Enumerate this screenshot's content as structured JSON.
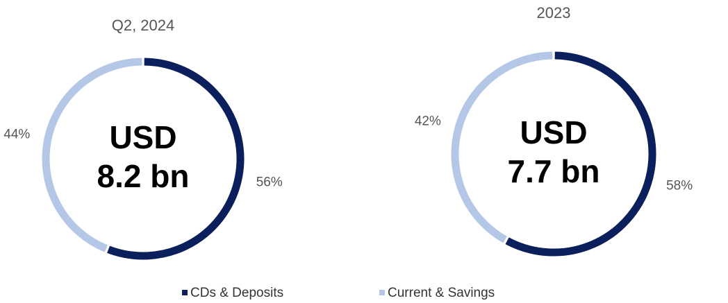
{
  "chart_data": [
    {
      "type": "pie",
      "title": "Q2, 2024",
      "center_text": [
        "USD",
        "8.2 bn"
      ],
      "categories": [
        "CDs & Deposits",
        "Current & Savings"
      ],
      "values": [
        56,
        44
      ],
      "value_labels": [
        "56%",
        "44%"
      ],
      "colors": [
        "#0b1f5c",
        "#b4c7e7"
      ]
    },
    {
      "type": "pie",
      "title": "2023",
      "center_text": [
        "USD",
        "7.7 bn"
      ],
      "categories": [
        "CDs & Deposits",
        "Current & Savings"
      ],
      "values": [
        58,
        42
      ],
      "value_labels": [
        "58%",
        "42%"
      ],
      "colors": [
        "#0b1f5c",
        "#b4c7e7"
      ]
    }
  ]
}
